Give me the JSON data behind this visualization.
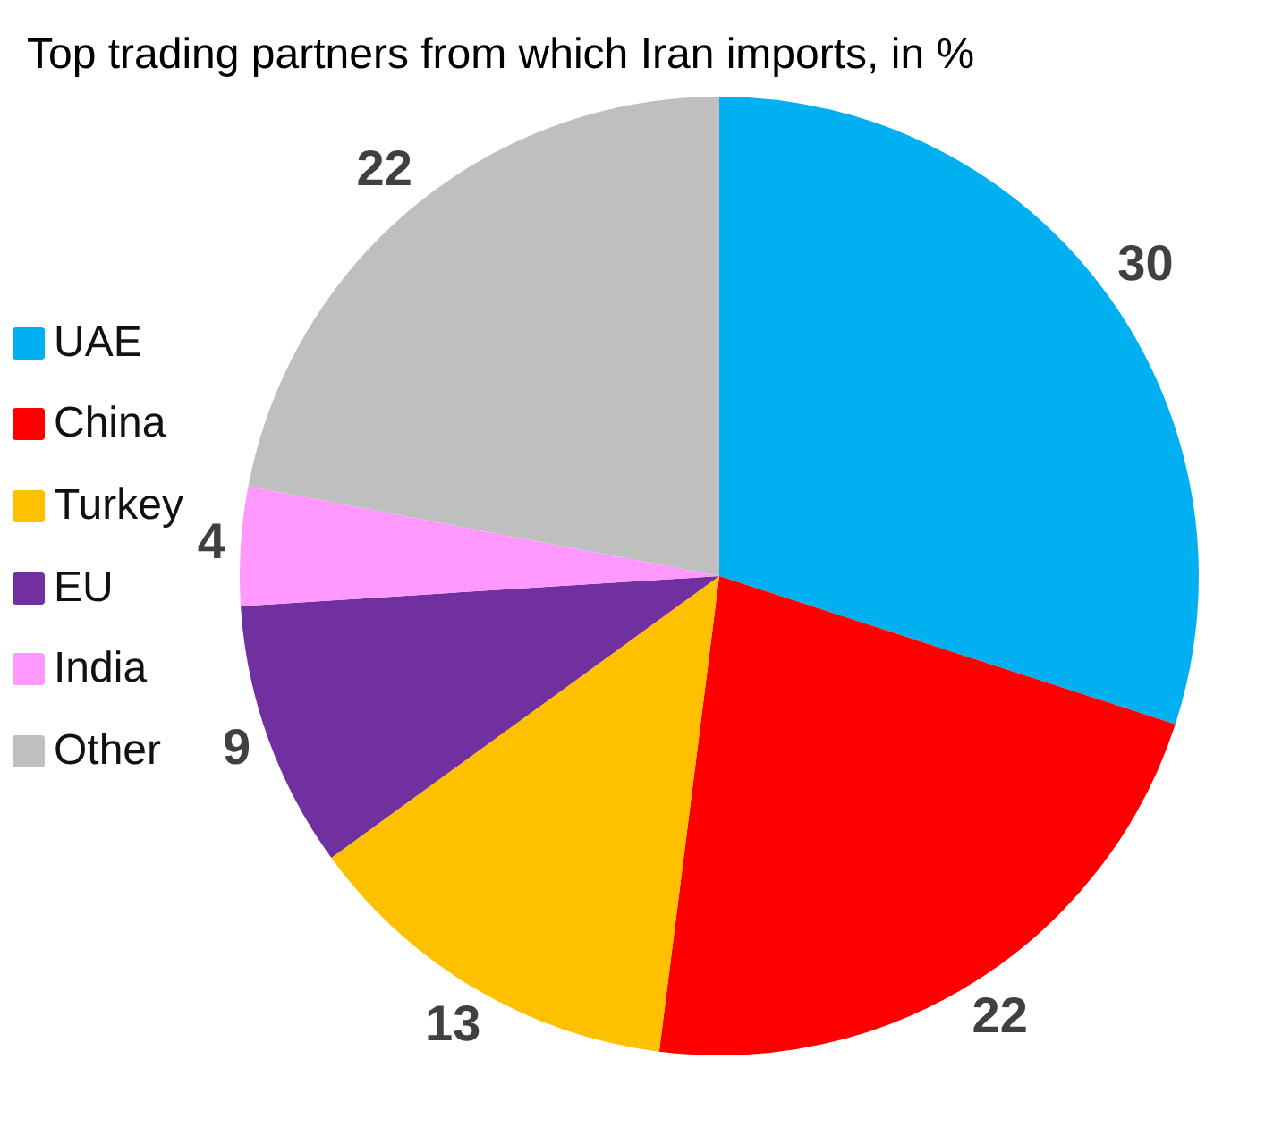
{
  "chart_data": {
    "type": "pie",
    "title": "Top trading partners from which Iran imports, in %",
    "categories": [
      "UAE",
      "China",
      "Turkey",
      "EU",
      "India",
      "Other"
    ],
    "values": [
      30,
      22,
      13,
      9,
      4,
      22
    ],
    "colors": [
      "#00b0f0",
      "#ff0000",
      "#ffc000",
      "#7030a0",
      "#ff99ff",
      "#bfbfbf"
    ],
    "data_labels": true,
    "legend": "left"
  }
}
